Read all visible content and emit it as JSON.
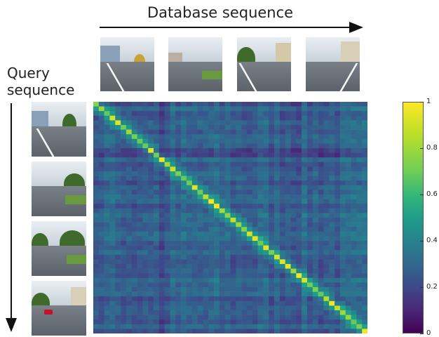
{
  "labels": {
    "database": "Database sequence",
    "query_line1": "Query",
    "query_line2": "sequence"
  },
  "colorbar": {
    "ticks": [
      "1",
      "0.8",
      "0.6",
      "0.4",
      "0.2",
      "0"
    ]
  },
  "colors": {
    "arrow": "#111111"
  },
  "chart_data": {
    "type": "heatmap",
    "title": "",
    "xlabel": "Database sequence",
    "ylabel": "Query sequence",
    "value_range": [
      0,
      1
    ],
    "colormap": "viridis",
    "rows": 50,
    "cols": 50,
    "diagonal_peak": 1.0,
    "background_level": 0.3
  }
}
